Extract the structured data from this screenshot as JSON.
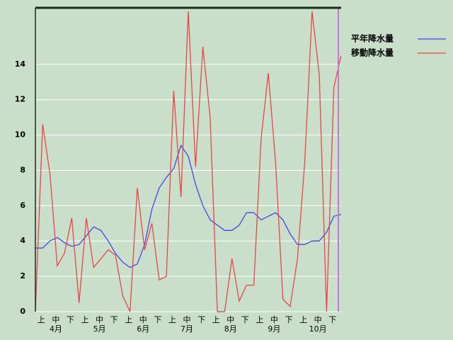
{
  "chart_data": {
    "type": "line",
    "categories": [
      null,
      "上",
      null,
      "中",
      null,
      "下",
      null,
      "上",
      null,
      "中",
      null,
      "下",
      null,
      "上",
      null,
      "中",
      null,
      "下",
      null,
      "上",
      null,
      "中",
      null,
      "下",
      null,
      "上",
      null,
      "中",
      null,
      "下",
      null,
      "上",
      null,
      "中",
      null,
      "下",
      null,
      "上",
      null,
      "中",
      null,
      "下",
      null
    ],
    "month_labels": [
      "4月",
      "5月",
      "6月",
      "7月",
      "8月",
      "9月",
      "10月"
    ],
    "series": [
      {
        "name": "平年降水量",
        "color": "#4646e6",
        "values": [
          3.6,
          3.6,
          4.0,
          4.2,
          3.9,
          3.7,
          3.8,
          4.3,
          4.8,
          4.6,
          4.0,
          3.3,
          2.8,
          2.5,
          2.7,
          3.8,
          5.8,
          7.0,
          7.6,
          8.1,
          9.4,
          8.8,
          7.2,
          6.0,
          5.2,
          4.9,
          4.6,
          4.6,
          4.9,
          5.6,
          5.6,
          5.2,
          5.4,
          5.6,
          5.2,
          4.4,
          3.8,
          3.8,
          4.0,
          4.0,
          4.5,
          5.4,
          5.5
        ]
      },
      {
        "name": "移動降水量",
        "color": "#e64646",
        "values": [
          0,
          10.6,
          7.8,
          2.6,
          3.3,
          5.3,
          0.5,
          5.3,
          2.5,
          3.0,
          3.5,
          3.2,
          0.9,
          0,
          7.0,
          3.5,
          5.0,
          1.8,
          2.0,
          12.5,
          6.5,
          17,
          8.2,
          15,
          11,
          0,
          0,
          3.0,
          0.6,
          1.5,
          1.5,
          9.8,
          13.5,
          8.4,
          0.7,
          0.3,
          3.0,
          8.5,
          17,
          13.4,
          0,
          12.7,
          14.5
        ]
      }
    ],
    "ylim": [
      0,
      17.2
    ],
    "yticks": [
      0,
      2,
      4,
      6,
      8,
      10,
      12,
      14
    ],
    "grid": true
  }
}
